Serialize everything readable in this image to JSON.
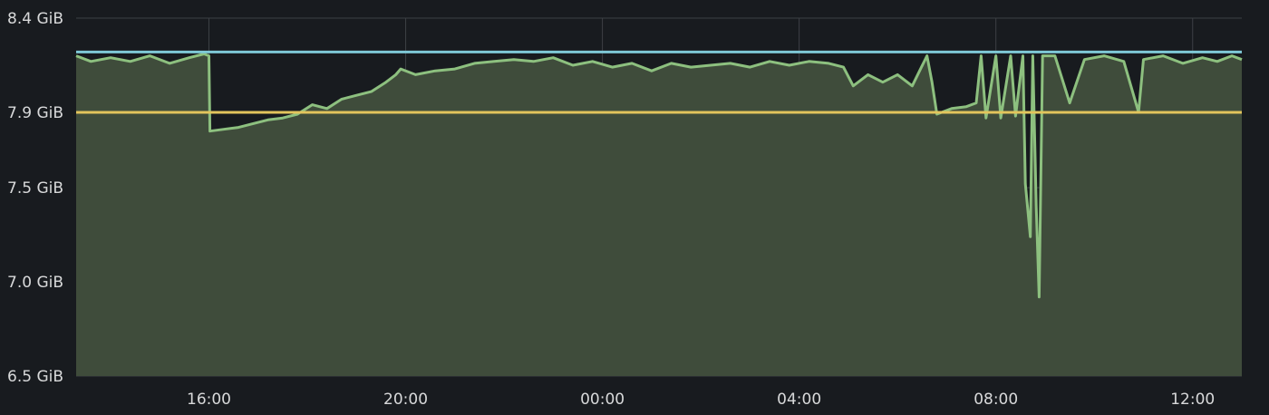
{
  "colors": {
    "background": "#181b1f",
    "grid": "#3d4045",
    "tick_text": "#d8d9da",
    "series_line": "#8dc07f",
    "series_fill": "#3f4c3b",
    "threshold_upper": "#7ec8d6",
    "threshold_lower": "#e2c45c"
  },
  "chart_data": {
    "type": "area",
    "title": "",
    "xlabel": "",
    "ylabel": "",
    "y_tick_labels": [
      "8.4 GiB",
      "7.9 GiB",
      "7.5 GiB",
      "7.0 GiB",
      "6.5 GiB"
    ],
    "y_tick_values": [
      8.4,
      7.9,
      7.5,
      7.0,
      6.5
    ],
    "ylim": [
      6.5,
      8.4
    ],
    "x_tick_labels": [
      "16:00",
      "20:00",
      "00:00",
      "04:00",
      "08:00",
      "12:00"
    ],
    "x_tick_hours": [
      16,
      20,
      24,
      28,
      32,
      36
    ],
    "xlim_hours": [
      13.3,
      37.0
    ],
    "grid": true,
    "legend": "none",
    "thresholds": [
      {
        "value": 8.22,
        "color_key": "threshold_upper"
      },
      {
        "value": 7.9,
        "color_key": "threshold_lower"
      }
    ],
    "series": [
      {
        "color_key": "series_line",
        "fill": true,
        "points": [
          [
            13.3,
            8.2
          ],
          [
            13.6,
            8.17
          ],
          [
            14.0,
            8.19
          ],
          [
            14.4,
            8.17
          ],
          [
            14.8,
            8.2
          ],
          [
            15.2,
            8.16
          ],
          [
            15.6,
            8.19
          ],
          [
            15.9,
            8.21
          ],
          [
            16.0,
            8.2
          ],
          [
            16.02,
            7.8
          ],
          [
            16.3,
            7.81
          ],
          [
            16.6,
            7.82
          ],
          [
            16.9,
            7.84
          ],
          [
            17.2,
            7.86
          ],
          [
            17.5,
            7.87
          ],
          [
            17.8,
            7.89
          ],
          [
            18.1,
            7.94
          ],
          [
            18.4,
            7.92
          ],
          [
            18.7,
            7.97
          ],
          [
            19.0,
            7.99
          ],
          [
            19.3,
            8.01
          ],
          [
            19.6,
            8.06
          ],
          [
            19.8,
            8.1
          ],
          [
            19.9,
            8.13
          ],
          [
            20.2,
            8.1
          ],
          [
            20.6,
            8.12
          ],
          [
            21.0,
            8.13
          ],
          [
            21.4,
            8.16
          ],
          [
            21.8,
            8.17
          ],
          [
            22.2,
            8.18
          ],
          [
            22.6,
            8.17
          ],
          [
            23.0,
            8.19
          ],
          [
            23.4,
            8.15
          ],
          [
            23.8,
            8.17
          ],
          [
            24.2,
            8.14
          ],
          [
            24.6,
            8.16
          ],
          [
            25.0,
            8.12
          ],
          [
            25.4,
            8.16
          ],
          [
            25.8,
            8.14
          ],
          [
            26.2,
            8.15
          ],
          [
            26.6,
            8.16
          ],
          [
            27.0,
            8.14
          ],
          [
            27.4,
            8.17
          ],
          [
            27.8,
            8.15
          ],
          [
            28.2,
            8.17
          ],
          [
            28.6,
            8.16
          ],
          [
            28.9,
            8.14
          ],
          [
            29.1,
            8.04
          ],
          [
            29.4,
            8.1
          ],
          [
            29.7,
            8.06
          ],
          [
            30.0,
            8.1
          ],
          [
            30.3,
            8.04
          ],
          [
            30.6,
            8.2
          ],
          [
            30.7,
            8.06
          ],
          [
            30.8,
            7.89
          ],
          [
            31.1,
            7.92
          ],
          [
            31.4,
            7.93
          ],
          [
            31.6,
            7.95
          ],
          [
            31.7,
            8.2
          ],
          [
            31.8,
            7.87
          ],
          [
            32.0,
            8.2
          ],
          [
            32.1,
            7.87
          ],
          [
            32.3,
            8.2
          ],
          [
            32.4,
            7.88
          ],
          [
            32.55,
            8.2
          ],
          [
            32.6,
            7.52
          ],
          [
            32.7,
            7.24
          ],
          [
            32.75,
            8.2
          ],
          [
            32.82,
            7.4
          ],
          [
            32.88,
            6.92
          ],
          [
            32.95,
            8.2
          ],
          [
            33.2,
            8.2
          ],
          [
            33.5,
            7.95
          ],
          [
            33.8,
            8.18
          ],
          [
            34.2,
            8.2
          ],
          [
            34.6,
            8.17
          ],
          [
            34.9,
            7.9
          ],
          [
            35.0,
            8.18
          ],
          [
            35.4,
            8.2
          ],
          [
            35.8,
            8.16
          ],
          [
            36.2,
            8.19
          ],
          [
            36.5,
            8.17
          ],
          [
            36.8,
            8.2
          ],
          [
            37.0,
            8.18
          ]
        ]
      }
    ]
  }
}
